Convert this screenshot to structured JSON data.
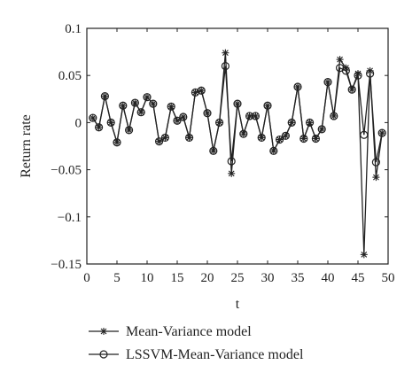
{
  "chart_data": {
    "type": "line",
    "xlabel": "t",
    "ylabel": "Return rate",
    "xlim": [
      0,
      50
    ],
    "ylim": [
      -0.15,
      0.1
    ],
    "xticks": [
      0,
      5,
      10,
      15,
      20,
      25,
      30,
      35,
      40,
      45,
      50
    ],
    "yticks": [
      0.1,
      0.05,
      0,
      -0.05,
      -0.1,
      -0.15
    ],
    "xtick_labels": [
      "0",
      "5",
      "10",
      "15",
      "20",
      "25",
      "30",
      "35",
      "40",
      "45",
      "50"
    ],
    "ytick_labels": [
      "0.1",
      "0.05",
      "0",
      "−0.05",
      "−0.1",
      "−0.15"
    ],
    "grid": false,
    "legend_position": "below",
    "x": [
      1,
      2,
      3,
      4,
      5,
      6,
      7,
      8,
      9,
      10,
      11,
      12,
      13,
      14,
      15,
      16,
      17,
      18,
      19,
      20,
      21,
      22,
      23,
      24,
      25,
      26,
      27,
      28,
      29,
      30,
      31,
      32,
      33,
      34,
      35,
      36,
      37,
      38,
      39,
      40,
      41,
      42,
      43,
      44,
      45,
      46,
      47,
      48,
      49
    ],
    "series": [
      {
        "name": "Mean-Variance model",
        "marker": "star",
        "color": "#222222",
        "values": [
          0.005,
          -0.005,
          0.028,
          0.0,
          -0.021,
          0.018,
          -0.008,
          0.021,
          0.011,
          0.027,
          0.02,
          -0.02,
          -0.016,
          0.017,
          0.002,
          0.006,
          -0.016,
          0.032,
          0.034,
          0.01,
          -0.03,
          0.0,
          0.074,
          -0.054,
          0.02,
          -0.012,
          0.007,
          0.007,
          -0.016,
          0.018,
          -0.03,
          -0.018,
          -0.014,
          0.0,
          0.038,
          -0.017,
          0.0,
          -0.017,
          -0.007,
          0.043,
          0.007,
          0.067,
          0.058,
          0.035,
          0.052,
          -0.14,
          0.055,
          -0.058,
          -0.011
        ]
      },
      {
        "name": "LSSVM-Mean-Variance model",
        "marker": "circle",
        "color": "#222222",
        "values": [
          0.005,
          -0.005,
          0.028,
          0.0,
          -0.021,
          0.018,
          -0.008,
          0.021,
          0.011,
          0.027,
          0.02,
          -0.02,
          -0.016,
          0.017,
          0.002,
          0.006,
          -0.016,
          0.032,
          0.034,
          0.01,
          -0.03,
          0.0,
          0.06,
          -0.041,
          0.02,
          -0.012,
          0.007,
          0.007,
          -0.016,
          0.018,
          -0.03,
          -0.018,
          -0.014,
          0.0,
          0.038,
          -0.017,
          0.0,
          -0.017,
          -0.007,
          0.043,
          0.007,
          0.058,
          0.055,
          0.035,
          0.05,
          -0.013,
          0.052,
          -0.042,
          -0.011
        ]
      }
    ]
  }
}
